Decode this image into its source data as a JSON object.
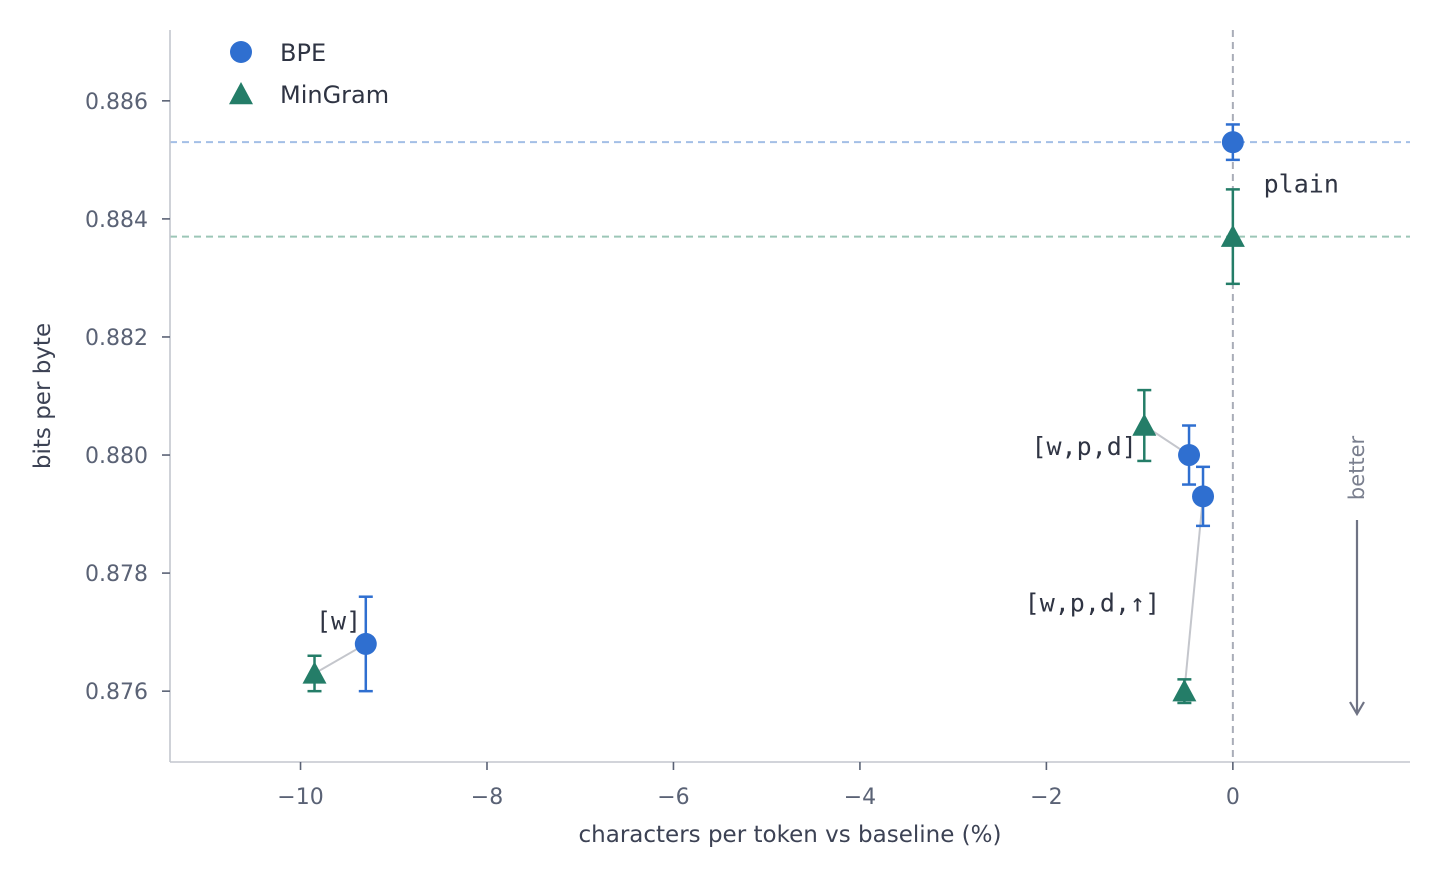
{
  "chart_data": {
    "type": "scatter",
    "xlabel": "characters per token vs baseline  (%)",
    "ylabel": "bits per byte",
    "xlim": [
      -11.4,
      1.9
    ],
    "ylim": [
      0.8748,
      0.8872
    ],
    "xticks": [
      -10,
      -8,
      -6,
      -4,
      -2,
      0
    ],
    "xtick_labels": [
      "−10",
      "−8",
      "−6",
      "−4",
      "−2",
      "0"
    ],
    "yticks": [
      0.876,
      0.878,
      0.88,
      0.882,
      0.884,
      0.886
    ],
    "ytick_labels": [
      "0.876",
      "0.878",
      "0.880",
      "0.882",
      "0.884",
      "0.886"
    ],
    "grid": false,
    "legend_position": "top-left",
    "series": [
      {
        "name": "BPE",
        "marker": "circle",
        "color": "#2f6fd0",
        "points": [
          {
            "x": 0.0,
            "y": 0.8853,
            "err": 0.0003
          },
          {
            "x": -0.47,
            "y": 0.88,
            "err": 0.0005
          },
          {
            "x": -0.32,
            "y": 0.8793,
            "err": 0.0005
          },
          {
            "x": -9.3,
            "y": 0.8768,
            "err": 0.0008
          }
        ]
      },
      {
        "name": "MinGram",
        "marker": "triangle",
        "color": "#247d68",
        "points": [
          {
            "x": 0.0,
            "y": 0.8837,
            "err": 0.0008
          },
          {
            "x": -0.95,
            "y": 0.8805,
            "err": 0.0006
          },
          {
            "x": -0.52,
            "y": 0.876,
            "err": 0.0002
          },
          {
            "x": -9.85,
            "y": 0.8763,
            "err": 0.0003
          }
        ]
      }
    ],
    "baselines": [
      {
        "y": 0.8853,
        "color": "#a3bfe6"
      },
      {
        "y": 0.8837,
        "color": "#9cc6b7"
      }
    ],
    "vline": {
      "x": 0.0,
      "color": "#a9adb8"
    },
    "connectors": [
      [
        [
          -9.85,
          0.8763
        ],
        [
          -9.3,
          0.8768
        ]
      ],
      [
        [
          -0.95,
          0.8805
        ],
        [
          -0.47,
          0.88
        ]
      ],
      [
        [
          -0.32,
          0.8793
        ],
        [
          -0.52,
          0.876
        ]
      ]
    ],
    "connector_color": "#c4c6cc",
    "annotations": [
      {
        "text": "plain",
        "x": 0.33,
        "y": 0.8846,
        "anchor": "start"
      },
      {
        "text": "[w,p,d]",
        "x": -1.03,
        "y": 0.88015,
        "anchor": "end"
      },
      {
        "text": "[w,p,d,↑]",
        "x": -0.78,
        "y": 0.8775,
        "anchor": "end"
      },
      {
        "text": "[w]",
        "x": -9.35,
        "y": 0.8772,
        "anchor": "end"
      }
    ],
    "better_label": "better"
  }
}
